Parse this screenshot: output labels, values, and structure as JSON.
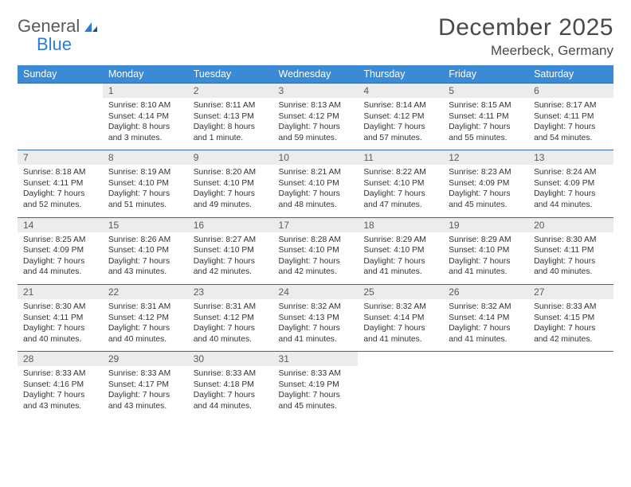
{
  "logo": {
    "text1": "General",
    "text2": "Blue"
  },
  "title": "December 2025",
  "location": "Meerbeck, Germany",
  "dow": [
    "Sunday",
    "Monday",
    "Tuesday",
    "Wednesday",
    "Thursday",
    "Friday",
    "Saturday"
  ],
  "colors": {
    "header_bg": "#3a8ad6",
    "header_text": "#ffffff",
    "daynum_bg": "#ececec",
    "rule": "#2e6aa8",
    "logo_accent": "#2e7cd6"
  },
  "weeks": [
    [
      {
        "n": "",
        "sr": "",
        "ss": "",
        "dl": ""
      },
      {
        "n": "1",
        "sr": "Sunrise: 8:10 AM",
        "ss": "Sunset: 4:14 PM",
        "dl": "Daylight: 8 hours and 3 minutes."
      },
      {
        "n": "2",
        "sr": "Sunrise: 8:11 AM",
        "ss": "Sunset: 4:13 PM",
        "dl": "Daylight: 8 hours and 1 minute."
      },
      {
        "n": "3",
        "sr": "Sunrise: 8:13 AM",
        "ss": "Sunset: 4:12 PM",
        "dl": "Daylight: 7 hours and 59 minutes."
      },
      {
        "n": "4",
        "sr": "Sunrise: 8:14 AM",
        "ss": "Sunset: 4:12 PM",
        "dl": "Daylight: 7 hours and 57 minutes."
      },
      {
        "n": "5",
        "sr": "Sunrise: 8:15 AM",
        "ss": "Sunset: 4:11 PM",
        "dl": "Daylight: 7 hours and 55 minutes."
      },
      {
        "n": "6",
        "sr": "Sunrise: 8:17 AM",
        "ss": "Sunset: 4:11 PM",
        "dl": "Daylight: 7 hours and 54 minutes."
      }
    ],
    [
      {
        "n": "7",
        "sr": "Sunrise: 8:18 AM",
        "ss": "Sunset: 4:11 PM",
        "dl": "Daylight: 7 hours and 52 minutes."
      },
      {
        "n": "8",
        "sr": "Sunrise: 8:19 AM",
        "ss": "Sunset: 4:10 PM",
        "dl": "Daylight: 7 hours and 51 minutes."
      },
      {
        "n": "9",
        "sr": "Sunrise: 8:20 AM",
        "ss": "Sunset: 4:10 PM",
        "dl": "Daylight: 7 hours and 49 minutes."
      },
      {
        "n": "10",
        "sr": "Sunrise: 8:21 AM",
        "ss": "Sunset: 4:10 PM",
        "dl": "Daylight: 7 hours and 48 minutes."
      },
      {
        "n": "11",
        "sr": "Sunrise: 8:22 AM",
        "ss": "Sunset: 4:10 PM",
        "dl": "Daylight: 7 hours and 47 minutes."
      },
      {
        "n": "12",
        "sr": "Sunrise: 8:23 AM",
        "ss": "Sunset: 4:09 PM",
        "dl": "Daylight: 7 hours and 45 minutes."
      },
      {
        "n": "13",
        "sr": "Sunrise: 8:24 AM",
        "ss": "Sunset: 4:09 PM",
        "dl": "Daylight: 7 hours and 44 minutes."
      }
    ],
    [
      {
        "n": "14",
        "sr": "Sunrise: 8:25 AM",
        "ss": "Sunset: 4:09 PM",
        "dl": "Daylight: 7 hours and 44 minutes."
      },
      {
        "n": "15",
        "sr": "Sunrise: 8:26 AM",
        "ss": "Sunset: 4:10 PM",
        "dl": "Daylight: 7 hours and 43 minutes."
      },
      {
        "n": "16",
        "sr": "Sunrise: 8:27 AM",
        "ss": "Sunset: 4:10 PM",
        "dl": "Daylight: 7 hours and 42 minutes."
      },
      {
        "n": "17",
        "sr": "Sunrise: 8:28 AM",
        "ss": "Sunset: 4:10 PM",
        "dl": "Daylight: 7 hours and 42 minutes."
      },
      {
        "n": "18",
        "sr": "Sunrise: 8:29 AM",
        "ss": "Sunset: 4:10 PM",
        "dl": "Daylight: 7 hours and 41 minutes."
      },
      {
        "n": "19",
        "sr": "Sunrise: 8:29 AM",
        "ss": "Sunset: 4:10 PM",
        "dl": "Daylight: 7 hours and 41 minutes."
      },
      {
        "n": "20",
        "sr": "Sunrise: 8:30 AM",
        "ss": "Sunset: 4:11 PM",
        "dl": "Daylight: 7 hours and 40 minutes."
      }
    ],
    [
      {
        "n": "21",
        "sr": "Sunrise: 8:30 AM",
        "ss": "Sunset: 4:11 PM",
        "dl": "Daylight: 7 hours and 40 minutes."
      },
      {
        "n": "22",
        "sr": "Sunrise: 8:31 AM",
        "ss": "Sunset: 4:12 PM",
        "dl": "Daylight: 7 hours and 40 minutes."
      },
      {
        "n": "23",
        "sr": "Sunrise: 8:31 AM",
        "ss": "Sunset: 4:12 PM",
        "dl": "Daylight: 7 hours and 40 minutes."
      },
      {
        "n": "24",
        "sr": "Sunrise: 8:32 AM",
        "ss": "Sunset: 4:13 PM",
        "dl": "Daylight: 7 hours and 41 minutes."
      },
      {
        "n": "25",
        "sr": "Sunrise: 8:32 AM",
        "ss": "Sunset: 4:14 PM",
        "dl": "Daylight: 7 hours and 41 minutes."
      },
      {
        "n": "26",
        "sr": "Sunrise: 8:32 AM",
        "ss": "Sunset: 4:14 PM",
        "dl": "Daylight: 7 hours and 41 minutes."
      },
      {
        "n": "27",
        "sr": "Sunrise: 8:33 AM",
        "ss": "Sunset: 4:15 PM",
        "dl": "Daylight: 7 hours and 42 minutes."
      }
    ],
    [
      {
        "n": "28",
        "sr": "Sunrise: 8:33 AM",
        "ss": "Sunset: 4:16 PM",
        "dl": "Daylight: 7 hours and 43 minutes."
      },
      {
        "n": "29",
        "sr": "Sunrise: 8:33 AM",
        "ss": "Sunset: 4:17 PM",
        "dl": "Daylight: 7 hours and 43 minutes."
      },
      {
        "n": "30",
        "sr": "Sunrise: 8:33 AM",
        "ss": "Sunset: 4:18 PM",
        "dl": "Daylight: 7 hours and 44 minutes."
      },
      {
        "n": "31",
        "sr": "Sunrise: 8:33 AM",
        "ss": "Sunset: 4:19 PM",
        "dl": "Daylight: 7 hours and 45 minutes."
      },
      {
        "n": "",
        "sr": "",
        "ss": "",
        "dl": ""
      },
      {
        "n": "",
        "sr": "",
        "ss": "",
        "dl": ""
      },
      {
        "n": "",
        "sr": "",
        "ss": "",
        "dl": ""
      }
    ]
  ]
}
